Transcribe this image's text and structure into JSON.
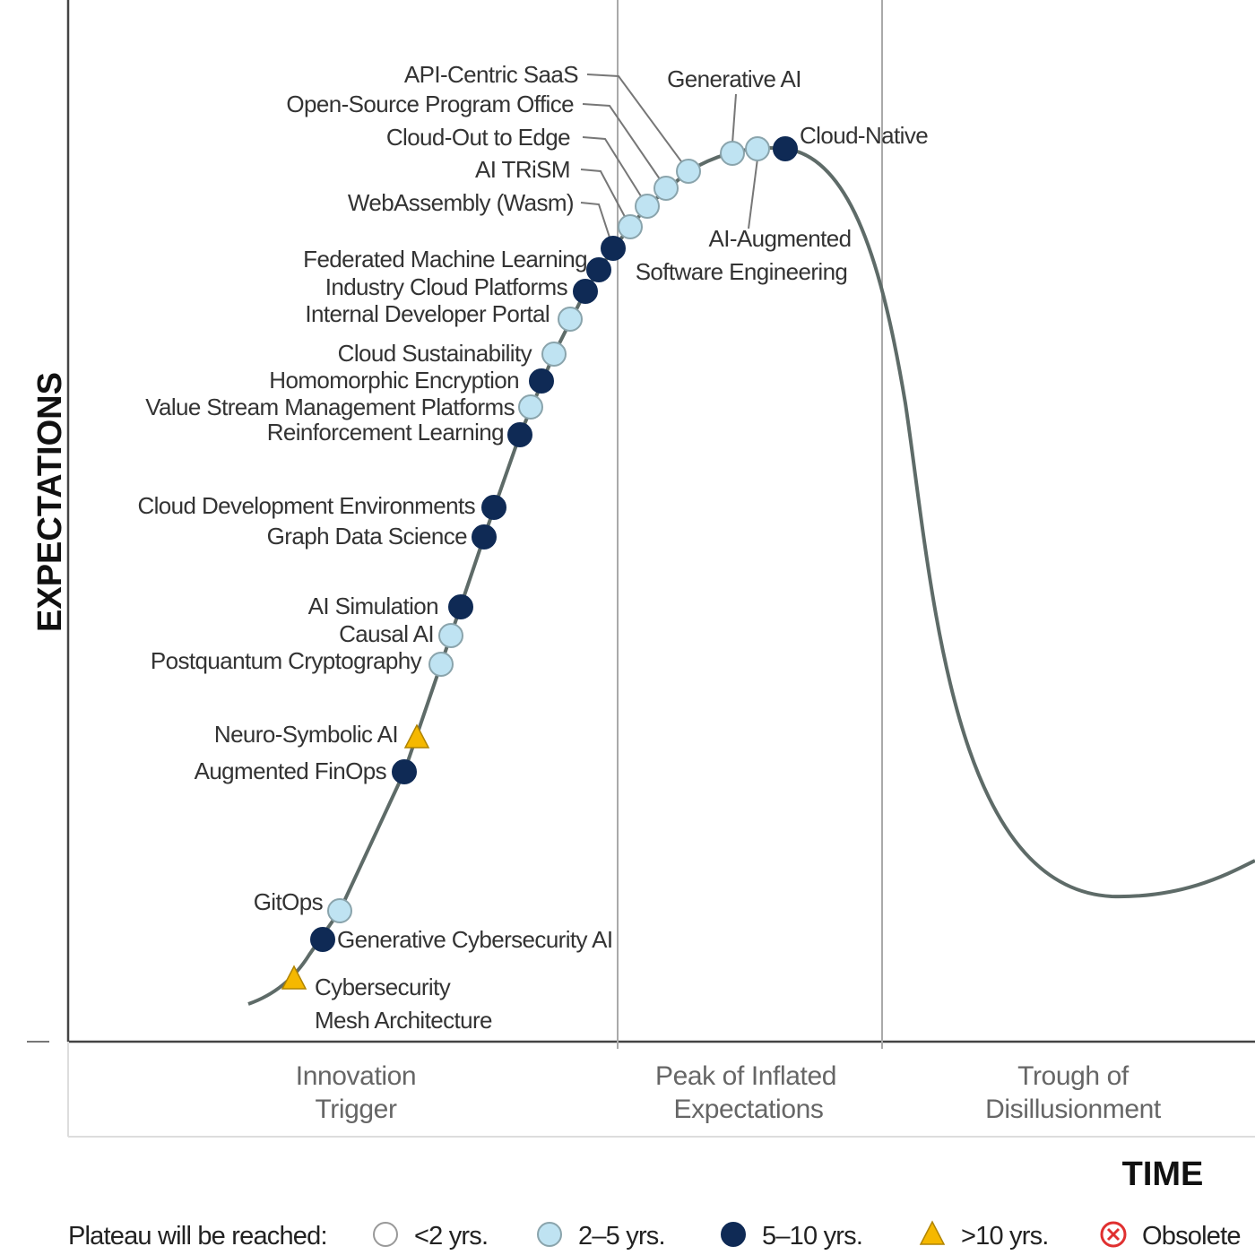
{
  "axes": {
    "y_label": "EXPECTATIONS",
    "x_label": "TIME"
  },
  "phases": [
    {
      "line1": "Innovation",
      "line2": "Trigger"
    },
    {
      "line1": "Peak of Inflated",
      "line2": "Expectations"
    },
    {
      "line1": "Trough of",
      "line2": "Disillusionment"
    }
  ],
  "legend": {
    "title": "Plateau will be reached:",
    "items": [
      {
        "key": "lt2",
        "label": "<2 yrs.",
        "shape": "circle",
        "color": "#ffffff"
      },
      {
        "key": "2to5",
        "label": "2–5 yrs.",
        "shape": "circle",
        "color": "#bfe3f2"
      },
      {
        "key": "5to10",
        "label": "5–10 yrs.",
        "shape": "circle",
        "color": "#0f2a55"
      },
      {
        "key": "gt10",
        "label": ">10 yrs.",
        "shape": "triangle",
        "color": "#f5b800"
      },
      {
        "key": "obsolete",
        "label": "Obsolete",
        "shape": "x-circle",
        "color": "#e03030"
      }
    ]
  },
  "technologies": [
    {
      "name": "API-Centric SaaS",
      "plateau": "2to5"
    },
    {
      "name": "Open-Source Program Office",
      "plateau": "2to5"
    },
    {
      "name": "Cloud-Out to Edge",
      "plateau": "2to5"
    },
    {
      "name": "AI TRiSM",
      "plateau": "2to5"
    },
    {
      "name": "WebAssembly (Wasm)",
      "plateau": "5to10"
    },
    {
      "name": "Generative AI",
      "plateau": "2to5"
    },
    {
      "name": "AI-Augmented",
      "name2": "Software Engineering",
      "plateau": "2to5"
    },
    {
      "name": "Cloud-Native",
      "plateau": "5to10"
    },
    {
      "name": "Federated Machine Learning",
      "plateau": "5to10"
    },
    {
      "name": "Industry Cloud Platforms",
      "plateau": "5to10"
    },
    {
      "name": "Internal Developer Portal",
      "plateau": "2to5"
    },
    {
      "name": "Cloud Sustainability",
      "plateau": "2to5"
    },
    {
      "name": "Homomorphic Encryption",
      "plateau": "5to10"
    },
    {
      "name": "Value Stream Management Platforms",
      "plateau": "2to5"
    },
    {
      "name": "Reinforcement Learning",
      "plateau": "5to10"
    },
    {
      "name": "Cloud Development Environments",
      "plateau": "5to10"
    },
    {
      "name": "Graph Data Science",
      "plateau": "5to10"
    },
    {
      "name": "AI Simulation",
      "plateau": "5to10"
    },
    {
      "name": "Causal AI",
      "plateau": "2to5"
    },
    {
      "name": "Postquantum Cryptography",
      "plateau": "2to5"
    },
    {
      "name": "Neuro-Symbolic AI",
      "plateau": "gt10"
    },
    {
      "name": "Augmented FinOps",
      "plateau": "5to10"
    },
    {
      "name": "GitOps",
      "plateau": "2to5"
    },
    {
      "name": "Generative Cybersecurity AI",
      "plateau": "5to10"
    },
    {
      "name": "Cybersecurity",
      "name2": "Mesh Architecture",
      "plateau": "gt10"
    }
  ]
}
